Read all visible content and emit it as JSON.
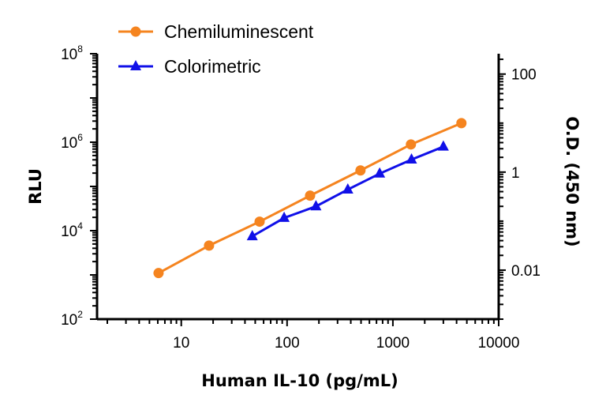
{
  "chart_data": {
    "type": "line",
    "xlabel": "Human IL-10 (pg/mL)",
    "ylabel_left": "RLU",
    "ylabel_right": "O.D. (450 nm)",
    "x_scale": "log",
    "y_left_scale": "log",
    "y_right_scale": "log",
    "xlim": [
      1.6,
      10000
    ],
    "ylim_left": [
      100,
      100000000
    ],
    "ylim_right": [
      0.001,
      260
    ],
    "grid": false,
    "legend_position": "top-left",
    "x_ticks": [
      {
        "value": 10,
        "label": "10"
      },
      {
        "value": 100,
        "label": "100"
      },
      {
        "value": 1000,
        "label": "1000"
      },
      {
        "value": 10000,
        "label": "10000"
      }
    ],
    "y_left_ticks": [
      {
        "value": 100,
        "base": "10",
        "exp": "2"
      },
      {
        "value": 10000,
        "base": "10",
        "exp": "4"
      },
      {
        "value": 1000000,
        "base": "10",
        "exp": "6"
      },
      {
        "value": 100000000,
        "base": "10",
        "exp": "8"
      }
    ],
    "y_right_ticks": [
      {
        "value": 0.01,
        "label": "0.01"
      },
      {
        "value": 1,
        "label": "1"
      },
      {
        "value": 100,
        "label": "100"
      }
    ],
    "series": [
      {
        "name": "Chemiluminescent",
        "axis": "left",
        "color": "#F5841F",
        "marker": "circle",
        "x": [
          6.1,
          18.3,
          55,
          165,
          494,
          1481,
          4444
        ],
        "y": [
          1100,
          4600,
          16000,
          62000,
          230000,
          890000,
          2700000
        ]
      },
      {
        "name": "Colorimetric",
        "axis": "right",
        "color": "#1010E8",
        "marker": "triangle",
        "x": [
          46.9,
          93.8,
          187.5,
          375,
          750,
          1500,
          3000
        ],
        "y": [
          0.049,
          0.116,
          0.2,
          0.44,
          0.93,
          1.8,
          3.3
        ]
      }
    ]
  }
}
